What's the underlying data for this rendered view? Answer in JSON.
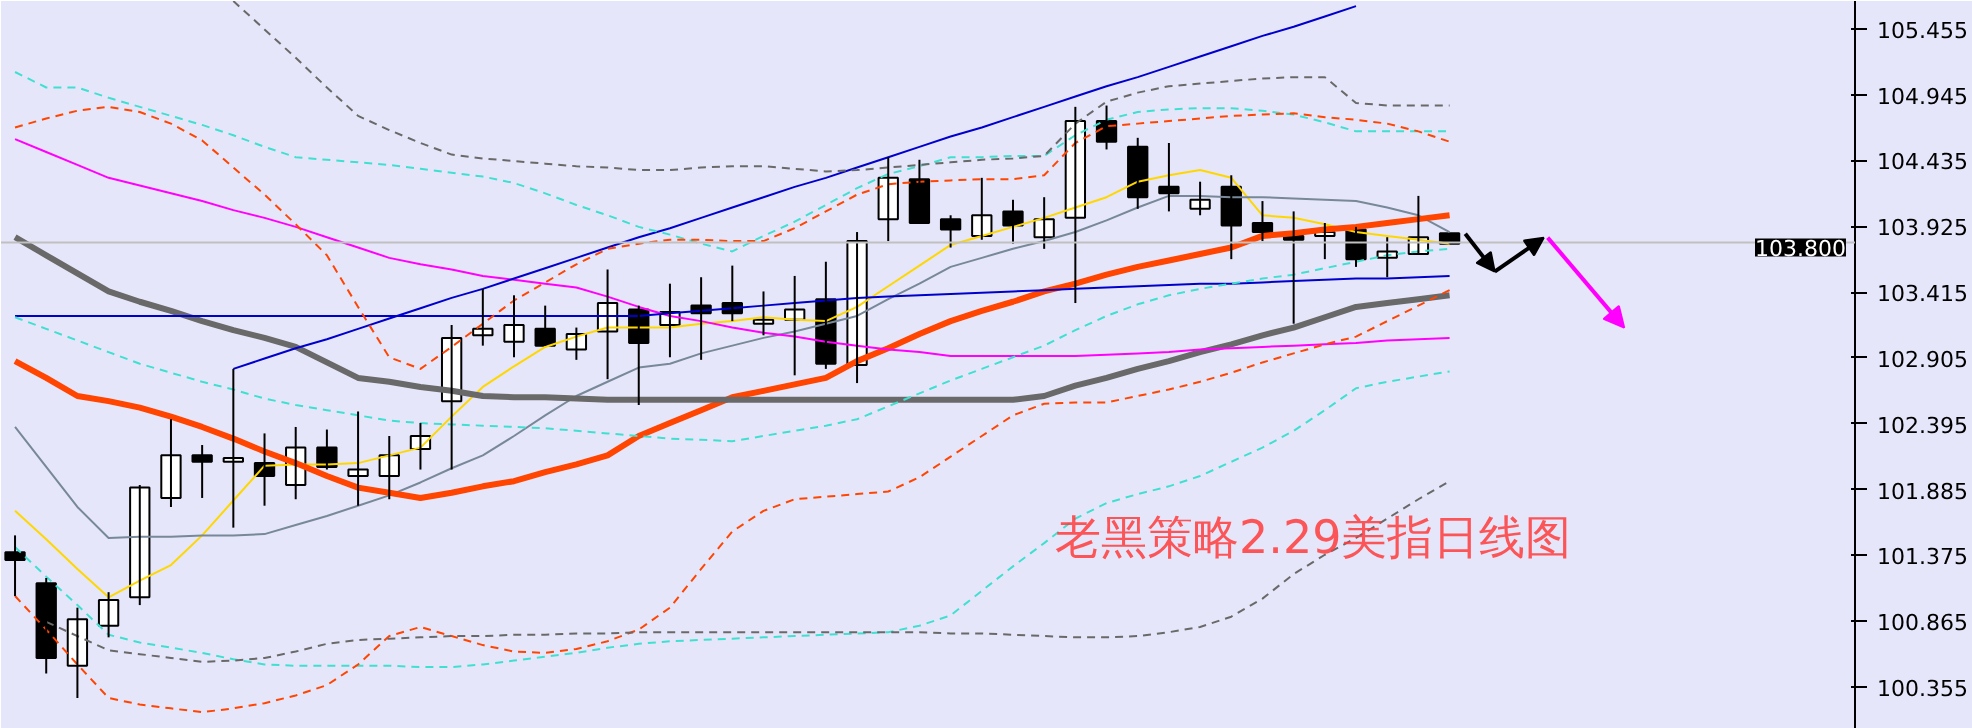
{
  "chart_data": {
    "type": "candlestick",
    "categories": [
      null,
      null,
      null,
      null,
      null,
      null,
      null,
      null,
      null,
      null,
      null,
      null,
      null,
      null,
      null,
      null,
      null,
      null,
      null,
      null,
      null,
      null,
      null,
      null,
      null,
      null,
      null,
      null,
      null,
      null,
      null,
      null,
      null,
      null,
      null,
      null,
      null,
      null,
      null,
      null,
      null,
      null,
      null,
      null,
      null,
      null,
      null
    ],
    "ohlc": [
      [
        101.4,
        101.53,
        101.06,
        101.34
      ],
      [
        101.16,
        101.2,
        100.46,
        100.58
      ],
      [
        100.52,
        100.97,
        100.27,
        100.88
      ],
      [
        100.83,
        101.09,
        100.74,
        101.03
      ],
      [
        101.05,
        101.92,
        100.99,
        101.9
      ],
      [
        101.82,
        102.43,
        101.75,
        102.15
      ],
      [
        102.15,
        102.23,
        101.82,
        102.1
      ],
      [
        102.1,
        102.82,
        101.59,
        102.13
      ],
      [
        102.09,
        102.32,
        101.76,
        101.99
      ],
      [
        101.92,
        102.37,
        101.81,
        102.21
      ],
      [
        102.21,
        102.35,
        102.04,
        102.06
      ],
      [
        101.99,
        102.49,
        101.76,
        102.04
      ],
      [
        101.99,
        102.3,
        101.81,
        102.15
      ],
      [
        102.2,
        102.4,
        102.04,
        102.3
      ],
      [
        102.57,
        103.16,
        102.04,
        103.06
      ],
      [
        103.08,
        103.44,
        103.0,
        103.13
      ],
      [
        103.03,
        103.39,
        102.91,
        103.16
      ],
      [
        103.13,
        103.31,
        103.0,
        103.0
      ],
      [
        102.97,
        103.14,
        102.89,
        103.09
      ],
      [
        103.11,
        103.59,
        102.74,
        103.33
      ],
      [
        103.28,
        103.31,
        102.54,
        103.02
      ],
      [
        103.16,
        103.48,
        102.91,
        103.26
      ],
      [
        103.31,
        103.53,
        102.89,
        103.25
      ],
      [
        103.33,
        103.62,
        103.19,
        103.25
      ],
      [
        103.17,
        103.42,
        103.08,
        103.2
      ],
      [
        103.2,
        103.54,
        102.77,
        103.28
      ],
      [
        103.36,
        103.65,
        102.82,
        102.86
      ],
      [
        102.85,
        103.88,
        102.71,
        103.81
      ],
      [
        103.98,
        104.46,
        103.81,
        104.3
      ],
      [
        104.29,
        104.44,
        103.95,
        103.95
      ],
      [
        103.98,
        104.01,
        103.76,
        103.9
      ],
      [
        103.85,
        104.3,
        103.82,
        104.01
      ],
      [
        104.04,
        104.13,
        103.79,
        103.93
      ],
      [
        103.84,
        104.15,
        103.75,
        103.98
      ],
      [
        103.99,
        104.85,
        103.33,
        104.74
      ],
      [
        104.74,
        104.86,
        104.52,
        104.58
      ],
      [
        104.54,
        104.61,
        104.06,
        104.15
      ],
      [
        104.23,
        104.57,
        104.04,
        104.18
      ],
      [
        104.06,
        104.27,
        104.01,
        104.13
      ],
      [
        104.23,
        104.32,
        103.67,
        103.93
      ],
      [
        103.95,
        104.12,
        103.81,
        103.88
      ],
      [
        103.85,
        104.04,
        103.17,
        103.82
      ],
      [
        103.85,
        103.95,
        103.67,
        103.88
      ],
      [
        103.9,
        103.92,
        103.61,
        103.67
      ],
      [
        103.68,
        103.84,
        103.53,
        103.73
      ],
      [
        103.71,
        104.16,
        103.71,
        103.84
      ],
      [
        103.87,
        103.87,
        103.79,
        103.79
      ]
    ],
    "series": [
      {
        "type": "line",
        "color": "#ffd700",
        "values": [
          101.72,
          101.5,
          101.27,
          101.05,
          101.18,
          101.3,
          101.53,
          101.8,
          102.07,
          102.08,
          102.08,
          102.09,
          102.15,
          102.21,
          102.45,
          102.68,
          102.84,
          102.99,
          103.07,
          103.14,
          103.14,
          103.14,
          103.17,
          103.19,
          103.22,
          103.2,
          103.19,
          103.3,
          103.46,
          103.62,
          103.78,
          103.85,
          103.92,
          103.99,
          104.07,
          104.15,
          104.27,
          104.32,
          104.36,
          104.3,
          104.01,
          103.99,
          103.94,
          103.88,
          103.85,
          103.82,
          103.79
        ]
      },
      {
        "type": "line",
        "color": "#778899",
        "values": [
          102.37,
          102.06,
          101.75,
          101.51,
          101.52,
          101.52,
          101.53,
          101.53,
          101.54,
          101.61,
          101.68,
          101.76,
          101.84,
          101.94,
          102.05,
          102.15,
          102.3,
          102.46,
          102.61,
          102.72,
          102.83,
          102.86,
          102.94,
          103.0,
          103.06,
          103.11,
          103.17,
          103.23,
          103.36,
          103.48,
          103.61,
          103.68,
          103.75,
          103.81,
          103.88,
          103.97,
          104.07,
          104.16,
          104.16,
          104.15,
          104.15,
          104.14,
          104.13,
          104.12,
          104.07,
          104.01,
          103.88
        ]
      },
      {
        "type": "line",
        "color": "#ff4500",
        "values": [
          102.88,
          102.75,
          102.61,
          102.57,
          102.52,
          102.45,
          102.37,
          102.28,
          102.18,
          102.09,
          101.99,
          101.9,
          101.86,
          101.82,
          101.86,
          101.91,
          101.95,
          102.02,
          102.08,
          102.15,
          102.3,
          102.4,
          102.5,
          102.6,
          102.65,
          102.7,
          102.75,
          102.88,
          102.98,
          103.09,
          103.19,
          103.27,
          103.34,
          103.42,
          103.48,
          103.55,
          103.61,
          103.66,
          103.71,
          103.76,
          103.85,
          103.87,
          103.9,
          103.92,
          103.95,
          103.98,
          104.01
        ]
      },
      {
        "type": "line",
        "color": "#696969",
        "values": [
          103.84,
          103.7,
          103.56,
          103.42,
          103.34,
          103.27,
          103.19,
          103.12,
          103.06,
          102.99,
          102.87,
          102.75,
          102.72,
          102.68,
          102.65,
          102.61,
          102.6,
          102.6,
          102.59,
          102.58,
          102.58,
          102.58,
          102.58,
          102.58,
          102.58,
          102.58,
          102.58,
          102.58,
          102.58,
          102.58,
          102.58,
          102.58,
          102.58,
          102.61,
          102.69,
          102.75,
          102.82,
          102.88,
          102.95,
          103.01,
          103.08,
          103.14,
          103.22,
          103.3,
          103.33,
          103.36,
          103.39
        ]
      },
      {
        "type": "line",
        "color": "#ff00ff",
        "values": [
          104.6,
          104.5,
          104.4,
          104.3,
          104.24,
          104.18,
          104.12,
          104.05,
          103.99,
          103.92,
          103.84,
          103.76,
          103.68,
          103.63,
          103.59,
          103.54,
          103.51,
          103.48,
          103.45,
          103.38,
          103.3,
          103.23,
          103.19,
          103.14,
          103.1,
          103.07,
          103.03,
          103.0,
          102.97,
          102.95,
          102.92,
          102.92,
          102.92,
          102.92,
          102.92,
          102.93,
          102.94,
          102.95,
          102.97,
          102.98,
          102.99,
          103.0,
          103.01,
          103.02,
          103.04,
          103.05,
          103.06
        ]
      },
      {
        "type": "line",
        "color": "#0000cd",
        "values": [
          103.23,
          103.23,
          103.23,
          103.23,
          103.23,
          103.23,
          103.23,
          103.23,
          103.23,
          103.23,
          103.23,
          103.23,
          103.23,
          103.23,
          103.23,
          103.23,
          103.23,
          103.23,
          103.23,
          103.23,
          103.23,
          103.25,
          103.27,
          103.29,
          103.31,
          103.33,
          103.35,
          103.37,
          103.38,
          103.39,
          103.4,
          103.41,
          103.42,
          103.43,
          103.44,
          103.45,
          103.46,
          103.47,
          103.48,
          103.48,
          103.49,
          103.5,
          103.51,
          103.52,
          103.52,
          103.53,
          103.54
        ]
      },
      {
        "type": "line",
        "color": "#0000cd",
        "values": [
          null,
          null,
          null,
          null,
          null,
          null,
          null,
          102.82,
          102.9,
          102.98,
          103.05,
          103.13,
          103.21,
          103.29,
          103.37,
          103.44,
          103.52,
          103.6,
          103.68,
          103.76,
          103.84,
          103.91,
          103.99,
          104.07,
          104.15,
          104.23,
          104.3,
          104.38,
          104.46,
          104.54,
          104.62,
          104.69,
          104.77,
          104.85,
          104.93,
          105.01,
          105.08,
          105.16,
          105.24,
          105.32,
          105.4,
          105.47,
          105.55,
          105.63,
          null,
          null,
          null
        ]
      },
      {
        "type": "line",
        "color": "#40e0d0",
        "line_style": "dashed",
        "values": [
          105.12,
          105.0,
          105.0,
          104.92,
          104.85,
          104.78,
          104.71,
          104.63,
          104.54,
          104.46,
          104.44,
          104.42,
          104.4,
          104.37,
          104.34,
          104.31,
          104.26,
          104.18,
          104.09,
          104.01,
          103.92,
          103.86,
          103.79,
          103.73,
          103.85,
          103.96,
          104.09,
          104.22,
          104.33,
          104.39,
          104.46,
          104.46,
          104.47,
          104.47,
          104.63,
          104.75,
          104.81,
          104.83,
          104.84,
          104.84,
          104.82,
          104.79,
          104.73,
          104.66,
          104.66,
          104.66,
          104.66
        ]
      },
      {
        "type": "line",
        "color": "#ff4500",
        "line_style": "dashed",
        "values": [
          104.69,
          104.76,
          104.82,
          104.85,
          104.81,
          104.72,
          104.59,
          104.38,
          104.17,
          103.94,
          103.7,
          103.3,
          102.91,
          102.82,
          102.99,
          103.17,
          103.35,
          103.49,
          103.63,
          103.75,
          103.79,
          103.82,
          103.82,
          103.81,
          103.81,
          103.91,
          104.04,
          104.17,
          104.25,
          104.27,
          104.28,
          104.29,
          104.29,
          104.32,
          104.57,
          104.7,
          104.72,
          104.74,
          104.76,
          104.78,
          104.79,
          104.8,
          104.77,
          104.75,
          104.72,
          104.66,
          104.58
        ]
      },
      {
        "type": "line",
        "color": "#696969",
        "line_style": "dashed",
        "values": [
          null,
          null,
          null,
          null,
          null,
          null,
          null,
          105.67,
          105.45,
          105.23,
          105.0,
          104.78,
          104.67,
          104.57,
          104.48,
          104.45,
          104.43,
          104.41,
          104.39,
          104.38,
          104.36,
          104.36,
          104.38,
          104.39,
          104.39,
          104.37,
          104.35,
          104.36,
          104.38,
          104.4,
          104.42,
          104.44,
          104.45,
          104.47,
          104.72,
          104.89,
          104.96,
          105.01,
          105.03,
          105.05,
          105.07,
          105.08,
          105.08,
          104.88,
          104.86,
          104.86,
          104.86
        ]
      },
      {
        "type": "line",
        "color": "#40e0d0",
        "line_style": "dashed",
        "values": [
          103.22,
          103.13,
          103.04,
          102.95,
          102.86,
          102.79,
          102.72,
          102.66,
          102.59,
          102.54,
          102.5,
          102.46,
          102.42,
          102.4,
          102.39,
          102.38,
          102.37,
          102.36,
          102.34,
          102.32,
          102.3,
          102.28,
          102.27,
          102.26,
          102.3,
          102.34,
          102.38,
          102.43,
          102.53,
          102.63,
          102.73,
          102.82,
          102.91,
          103.0,
          103.12,
          103.23,
          103.32,
          103.39,
          103.44,
          103.48,
          103.52,
          103.55,
          103.6,
          103.65,
          103.7,
          103.73,
          103.75
        ]
      },
      {
        "type": "line",
        "color": "#40e0d0",
        "line_style": "dashed",
        "values": [
          101.44,
          101.21,
          100.99,
          100.76,
          100.7,
          100.66,
          100.62,
          100.57,
          100.53,
          100.52,
          100.52,
          100.52,
          100.52,
          100.51,
          100.51,
          100.53,
          100.56,
          100.59,
          100.62,
          100.66,
          100.69,
          100.71,
          100.72,
          100.73,
          100.74,
          100.75,
          100.76,
          100.77,
          100.78,
          100.83,
          100.91,
          101.1,
          101.29,
          101.47,
          101.66,
          101.78,
          101.85,
          101.91,
          101.99,
          102.1,
          102.21,
          102.34,
          102.5,
          102.67,
          102.72,
          102.76,
          102.8
        ]
      },
      {
        "type": "line",
        "color": "#ff4500",
        "line_style": "dashed",
        "values": [
          101.06,
          100.8,
          100.53,
          100.27,
          100.22,
          100.19,
          100.16,
          100.19,
          100.23,
          100.29,
          100.37,
          100.53,
          100.75,
          100.82,
          100.75,
          100.68,
          100.63,
          100.62,
          100.65,
          100.71,
          100.8,
          100.97,
          101.27,
          101.56,
          101.72,
          101.81,
          101.83,
          101.85,
          101.87,
          101.98,
          102.14,
          102.3,
          102.46,
          102.55,
          102.56,
          102.56,
          102.61,
          102.66,
          102.72,
          102.79,
          102.87,
          102.94,
          103.01,
          103.07,
          103.19,
          103.31,
          103.43
        ]
      },
      {
        "type": "line",
        "color": "#696969",
        "line_style": "dashed",
        "values": [
          null,
          100.86,
          100.75,
          100.64,
          100.61,
          100.58,
          100.55,
          100.56,
          100.58,
          100.63,
          100.69,
          100.72,
          100.73,
          100.74,
          100.75,
          100.75,
          100.76,
          100.76,
          100.77,
          100.77,
          100.78,
          100.78,
          100.78,
          100.78,
          100.78,
          100.78,
          100.78,
          100.78,
          100.78,
          100.78,
          100.77,
          100.77,
          100.76,
          100.75,
          100.74,
          100.74,
          100.75,
          100.78,
          100.82,
          100.9,
          101.04,
          101.23,
          101.38,
          101.51,
          101.66,
          101.81,
          101.95
        ]
      }
    ],
    "ylim": [
      100.03,
      105.67
    ],
    "yticks": [
      100.355,
      100.865,
      101.375,
      101.885,
      102.395,
      102.905,
      103.415,
      103.925,
      104.435,
      104.945,
      105.455
    ],
    "tick_labels": "y",
    "grid": false,
    "ref_lines": [
      {
        "axis": "y",
        "value": 103.8,
        "label": "103.800",
        "color": "#c0c0c0"
      }
    ],
    "annotations": [
      "老黑策略2.29美指日线图"
    ]
  }
}
